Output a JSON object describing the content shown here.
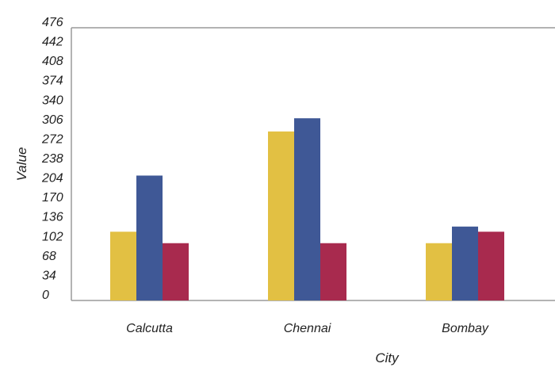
{
  "chart_data": {
    "type": "bar",
    "title": "",
    "xlabel": "City",
    "ylabel": "Value",
    "ylim": [
      0,
      476
    ],
    "yticks": [
      0,
      34,
      68,
      102,
      136,
      170,
      204,
      238,
      272,
      306,
      340,
      374,
      408,
      442,
      476
    ],
    "grid": false,
    "legend": "none",
    "categories": [
      "Calcutta",
      "Chennai",
      "Bombay"
    ],
    "series": [
      {
        "color": "#E2C043",
        "values": [
          120,
          295,
          100
        ]
      },
      {
        "color": "#3F5896",
        "values": [
          218,
          318,
          129
        ]
      },
      {
        "color": "#A82A4E",
        "values": [
          100,
          100,
          120
        ]
      }
    ]
  }
}
